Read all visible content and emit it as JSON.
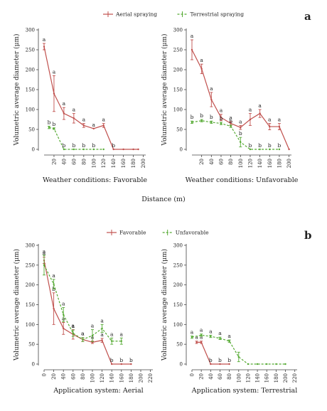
{
  "figure": {
    "panel_a_letter": "a",
    "panel_b_letter": "b",
    "legend_a": [
      {
        "name": "Aerial spraying",
        "color": "#c0504d",
        "dashed": false
      },
      {
        "name": "Terrestrial spraying",
        "color": "#55aa33",
        "dashed": true
      }
    ],
    "legend_b": [
      {
        "name": "Favorable",
        "color": "#c0504d",
        "dashed": false
      },
      {
        "name": "Unfavorable",
        "color": "#55aa33",
        "dashed": true
      }
    ],
    "shared_xlabel_a": "Distance (m)"
  },
  "chart_data": [
    {
      "type": "line",
      "title": "Weather conditions: Favorable",
      "ylabel": "Volumetric average diameter (μm)",
      "ylim": [
        0,
        300
      ],
      "yticks": [
        0,
        50,
        100,
        150,
        200,
        250,
        300
      ],
      "xlim": [
        0,
        205
      ],
      "xticks": [
        20,
        40,
        60,
        80,
        100,
        120,
        140,
        160,
        180,
        200
      ],
      "series": [
        {
          "name": "Aerial spraying",
          "color": "#c0504d",
          "dashed": false,
          "x": [
            0,
            20,
            40,
            60,
            80,
            100,
            120,
            140,
            160,
            180,
            190
          ],
          "y": [
            258,
            140,
            90,
            78,
            60,
            52,
            60,
            0,
            0,
            0,
            0
          ],
          "err": [
            8,
            45,
            15,
            12,
            5,
            0,
            5,
            0,
            0,
            0,
            0
          ],
          "labels": [
            "a",
            "a",
            "a",
            "a",
            "a",
            "a",
            "a",
            "b",
            "",
            "",
            ""
          ]
        },
        {
          "name": "Terrestrial spraying",
          "color": "#55aa33",
          "dashed": true,
          "x": [
            10,
            20,
            40,
            60,
            80,
            100,
            120
          ],
          "y": [
            55,
            52,
            0,
            0,
            0,
            0,
            0
          ],
          "err": [
            3,
            2,
            0,
            0,
            0,
            0,
            0
          ],
          "labels": [
            "b",
            "b",
            "b",
            "b",
            "b",
            "b",
            ""
          ]
        }
      ]
    },
    {
      "type": "line",
      "title": "Weather conditions: Unfavorable",
      "ylabel": "Volumetric average diameter (μm)",
      "ylim": [
        0,
        300
      ],
      "yticks": [
        0,
        50,
        100,
        150,
        200,
        250,
        300
      ],
      "xlim": [
        0,
        205
      ],
      "xticks": [
        20,
        40,
        60,
        80,
        100,
        120,
        140,
        160,
        180,
        200
      ],
      "series": [
        {
          "name": "Aerial spraying",
          "color": "#c0504d",
          "dashed": false,
          "x": [
            0,
            20,
            40,
            60,
            80,
            100,
            120,
            140,
            160,
            180,
            200
          ],
          "y": [
            250,
            202,
            125,
            80,
            65,
            55,
            75,
            90,
            57,
            57,
            0
          ],
          "err": [
            25,
            12,
            18,
            8,
            5,
            5,
            15,
            10,
            8,
            8,
            0
          ],
          "labels": [
            "a",
            "a",
            "a",
            "a",
            "a",
            "a",
            "a",
            "a",
            "a",
            "a",
            ""
          ]
        },
        {
          "name": "Terrestrial spraying",
          "color": "#55aa33",
          "dashed": true,
          "x": [
            0,
            20,
            40,
            60,
            80,
            100,
            120,
            140,
            160,
            180
          ],
          "y": [
            68,
            72,
            68,
            65,
            58,
            18,
            0,
            0,
            0,
            0
          ],
          "err": [
            3,
            3,
            3,
            3,
            3,
            12,
            0,
            0,
            0,
            0
          ],
          "labels": [
            "b",
            "b",
            "b",
            "b",
            "b",
            "b",
            "b",
            "b",
            "b",
            "b"
          ]
        }
      ]
    },
    {
      "type": "line",
      "title": "",
      "xlabel": "Application system: Aerial",
      "ylabel": "Volumetric average diameter (μm)",
      "ylim": [
        0,
        300
      ],
      "yticks": [
        0,
        50,
        100,
        150,
        200,
        250,
        300
      ],
      "xlim": [
        0,
        225
      ],
      "xticks": [
        0,
        20,
        40,
        60,
        80,
        100,
        120,
        140,
        160,
        180,
        200,
        220
      ],
      "series": [
        {
          "name": "Favorable",
          "color": "#c0504d",
          "dashed": false,
          "x": [
            0,
            20,
            40,
            60,
            80,
            100,
            120,
            140,
            160,
            180
          ],
          "y": [
            262,
            140,
            90,
            75,
            62,
            55,
            60,
            0,
            0,
            0
          ],
          "err": [
            8,
            40,
            15,
            12,
            5,
            3,
            5,
            0,
            0,
            0
          ],
          "labels": [
            "a",
            "b",
            "a",
            "a",
            "a",
            "a",
            "a",
            "b",
            "b",
            "b"
          ]
        },
        {
          "name": "Unfavorable",
          "color": "#55aa33",
          "dashed": true,
          "x": [
            0,
            20,
            40,
            60,
            80,
            100,
            120,
            140,
            160
          ],
          "y": [
            250,
            202,
            125,
            78,
            62,
            72,
            90,
            58,
            58
          ],
          "err": [
            25,
            12,
            18,
            8,
            5,
            15,
            10,
            8,
            8
          ],
          "labels": [
            "a",
            "a",
            "a",
            "a",
            "a",
            "a",
            "a",
            "a",
            "a"
          ]
        }
      ]
    },
    {
      "type": "line",
      "title": "",
      "xlabel": "Application system: Terrestrial",
      "ylabel": "Volumetric average diameter (μm)",
      "ylim": [
        0,
        300
      ],
      "yticks": [
        0,
        50,
        100,
        150,
        200,
        250,
        300
      ],
      "xlim": [
        0,
        225
      ],
      "xticks": [
        0,
        20,
        40,
        60,
        80,
        100,
        120,
        140,
        160,
        180,
        200,
        220
      ],
      "series": [
        {
          "name": "Favorable",
          "color": "#c0504d",
          "dashed": false,
          "x": [
            10,
            20,
            40,
            60,
            80
          ],
          "y": [
            55,
            55,
            0,
            0,
            0
          ],
          "err": [
            3,
            3,
            0,
            0,
            0
          ],
          "labels": [
            "a",
            "a",
            "b",
            "b",
            "b"
          ]
        },
        {
          "name": "Unfavorable",
          "color": "#55aa33",
          "dashed": true,
          "x": [
            0,
            20,
            40,
            60,
            80,
            100,
            120,
            140,
            160,
            180,
            200
          ],
          "y": [
            68,
            73,
            70,
            65,
            58,
            18,
            0,
            0,
            0,
            0,
            0
          ],
          "err": [
            3,
            3,
            3,
            3,
            3,
            12,
            0,
            0,
            0,
            0,
            0
          ],
          "labels": [
            "a",
            "a",
            "a",
            "a",
            "a",
            "",
            "",
            "",
            "",
            "",
            ""
          ]
        }
      ]
    }
  ]
}
